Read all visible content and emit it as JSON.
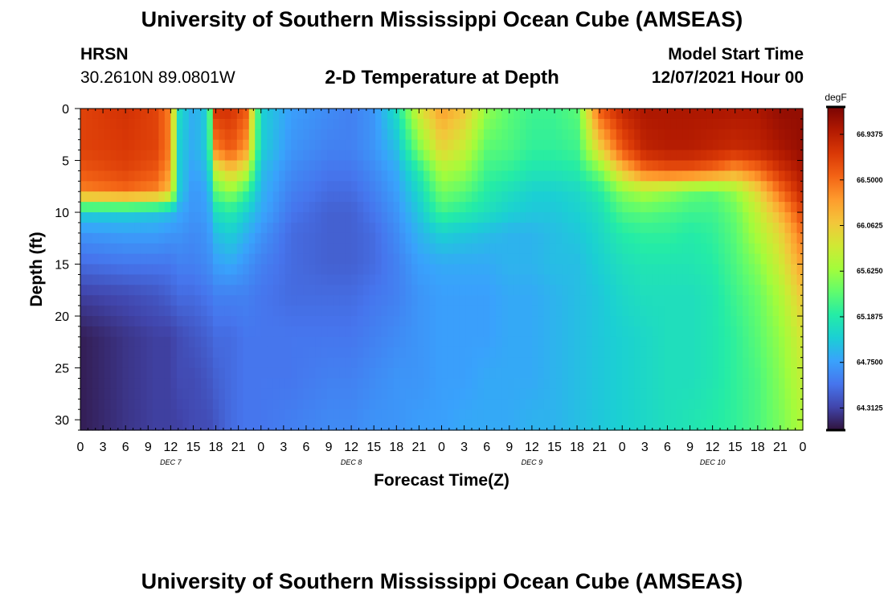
{
  "header": {
    "title": "University of Southern Mississippi Ocean Cube (AMSEAS)",
    "station": "HRSN",
    "coordinates": "30.2610N  89.0801W",
    "subtitle": "2-D Temperature at Depth",
    "model_start_label": "Model Start Time",
    "model_start_value": "12/07/2021 Hour 00"
  },
  "footer": {
    "title": "University of Southern Mississippi Ocean Cube (AMSEAS)"
  },
  "chart_data": {
    "type": "heatmap",
    "xlabel": "Forecast Time(Z)",
    "ylabel": "Depth (ft)",
    "x_range_hours": [
      0,
      96
    ],
    "x_tick_step_hours": 3,
    "x_tick_labels": [
      "0",
      "3",
      "6",
      "9",
      "12",
      "15",
      "18",
      "21",
      "0",
      "3",
      "6",
      "9",
      "12",
      "15",
      "18",
      "21",
      "0",
      "3",
      "6",
      "9",
      "12",
      "15",
      "18",
      "21",
      "0",
      "3",
      "6",
      "9",
      "12",
      "15",
      "18",
      "21",
      "0"
    ],
    "day_labels": [
      {
        "label": "DEC 7",
        "hour": 12
      },
      {
        "label": "DEC 8",
        "hour": 36
      },
      {
        "label": "DEC 9",
        "hour": 60
      },
      {
        "label": "DEC 10",
        "hour": 84
      }
    ],
    "y_range_ft": [
      0,
      31
    ],
    "y_ticks": [
      0,
      5,
      10,
      15,
      20,
      25,
      30
    ],
    "y_inverted": true,
    "colorbar": {
      "unit": "degF",
      "min": 64.1,
      "max": 67.2,
      "tick_labels": [
        "66.9375",
        "66.5000",
        "66.0625",
        "65.6250",
        "65.1875",
        "64.7500",
        "64.3125"
      ],
      "tick_values": [
        66.9375,
        66.5,
        66.0625,
        65.625,
        65.1875,
        64.75,
        64.3125
      ]
    },
    "columns_hours": [
      0,
      6,
      10,
      12,
      13,
      15,
      17,
      18,
      20,
      22,
      24,
      28,
      33,
      36,
      39,
      42,
      45,
      48,
      51,
      54,
      57,
      60,
      63,
      66,
      69,
      72,
      75,
      78,
      81,
      84,
      87,
      90,
      93,
      96
    ],
    "rows_ft": [
      0,
      4,
      6,
      8,
      10,
      12,
      15,
      18,
      22,
      26,
      31
    ],
    "values_degF": [
      [
        66.7,
        66.8,
        66.7,
        66.4,
        65.1,
        64.8,
        65.0,
        66.8,
        66.8,
        66.6,
        65.0,
        64.75,
        64.65,
        64.6,
        64.7,
        65.1,
        65.9,
        66.3,
        66.1,
        65.6,
        65.4,
        65.3,
        65.3,
        65.4,
        66.6,
        66.9,
        67.0,
        67.0,
        67.0,
        67.0,
        67.0,
        67.0,
        67.1,
        67.1
      ],
      [
        66.7,
        66.75,
        66.7,
        66.4,
        65.0,
        64.8,
        65.0,
        66.4,
        66.6,
        66.3,
        65.0,
        64.7,
        64.6,
        64.6,
        64.7,
        64.9,
        65.5,
        66.0,
        65.8,
        65.4,
        65.35,
        65.25,
        65.25,
        65.3,
        66.0,
        66.6,
        66.9,
        66.95,
        66.95,
        66.9,
        66.85,
        66.9,
        67.0,
        67.1
      ],
      [
        66.6,
        66.7,
        66.6,
        66.3,
        65.0,
        64.75,
        64.9,
        65.8,
        66.1,
        65.8,
        64.9,
        64.65,
        64.55,
        64.55,
        64.65,
        64.8,
        65.2,
        65.7,
        65.6,
        65.3,
        65.25,
        65.15,
        65.15,
        65.2,
        65.5,
        66.1,
        66.5,
        66.6,
        66.6,
        66.5,
        66.3,
        66.5,
        66.8,
        67.0
      ],
      [
        66.4,
        66.5,
        66.4,
        66.1,
        65.0,
        64.7,
        64.8,
        65.4,
        65.6,
        65.3,
        64.85,
        64.6,
        64.5,
        64.5,
        64.6,
        64.75,
        65.05,
        65.5,
        65.4,
        65.2,
        65.1,
        65.0,
        65.0,
        65.05,
        65.2,
        65.55,
        65.7,
        65.6,
        65.45,
        65.4,
        65.6,
        66.0,
        66.5,
        66.9
      ],
      [
        65.0,
        65.0,
        64.95,
        64.9,
        64.8,
        64.7,
        64.75,
        65.1,
        65.2,
        65.0,
        64.8,
        64.55,
        64.45,
        64.45,
        64.55,
        64.7,
        64.95,
        65.3,
        65.2,
        65.1,
        65.0,
        64.95,
        64.95,
        65.0,
        65.1,
        65.35,
        65.4,
        65.35,
        65.3,
        65.3,
        65.45,
        65.8,
        66.2,
        66.7
      ],
      [
        64.7,
        64.75,
        64.75,
        64.7,
        64.7,
        64.65,
        64.7,
        64.9,
        65.0,
        64.85,
        64.7,
        64.5,
        64.45,
        64.45,
        64.5,
        64.65,
        64.85,
        65.0,
        64.95,
        64.9,
        64.85,
        64.85,
        64.9,
        64.95,
        65.05,
        65.2,
        65.25,
        65.25,
        65.2,
        65.25,
        65.4,
        65.7,
        66.0,
        66.5
      ],
      [
        64.5,
        64.55,
        64.55,
        64.55,
        64.6,
        64.6,
        64.65,
        64.75,
        64.8,
        64.7,
        64.6,
        64.5,
        64.45,
        64.45,
        64.5,
        64.6,
        64.75,
        64.8,
        64.8,
        64.8,
        64.85,
        64.85,
        64.9,
        64.9,
        65.0,
        65.1,
        65.15,
        65.15,
        65.15,
        65.2,
        65.35,
        65.55,
        65.85,
        66.3
      ],
      [
        64.3,
        64.35,
        64.4,
        64.45,
        64.5,
        64.5,
        64.55,
        64.6,
        64.6,
        64.6,
        64.55,
        64.5,
        64.5,
        64.5,
        64.55,
        64.6,
        64.7,
        64.75,
        64.75,
        64.75,
        64.8,
        64.8,
        64.85,
        64.9,
        64.95,
        65.05,
        65.1,
        65.1,
        65.1,
        65.15,
        65.3,
        65.45,
        65.7,
        66.1
      ],
      [
        64.15,
        64.25,
        64.3,
        64.3,
        64.35,
        64.4,
        64.45,
        64.5,
        64.5,
        64.55,
        64.55,
        64.55,
        64.55,
        64.55,
        64.6,
        64.65,
        64.7,
        64.75,
        64.75,
        64.75,
        64.8,
        64.8,
        64.85,
        64.9,
        64.95,
        65.0,
        65.05,
        65.1,
        65.1,
        65.15,
        65.25,
        65.4,
        65.6,
        65.9
      ],
      [
        64.15,
        64.25,
        64.3,
        64.3,
        64.35,
        64.35,
        64.4,
        64.45,
        64.5,
        64.55,
        64.55,
        64.55,
        64.6,
        64.6,
        64.65,
        64.7,
        64.7,
        64.75,
        64.75,
        64.8,
        64.8,
        64.8,
        64.85,
        64.9,
        64.95,
        65.0,
        65.05,
        65.1,
        65.1,
        65.15,
        65.25,
        65.35,
        65.55,
        65.8
      ],
      [
        64.15,
        64.25,
        64.3,
        64.3,
        64.3,
        64.35,
        64.35,
        64.4,
        64.5,
        64.55,
        64.55,
        64.6,
        64.65,
        64.65,
        64.7,
        64.7,
        64.75,
        64.75,
        64.8,
        64.8,
        64.8,
        64.85,
        64.85,
        64.9,
        64.95,
        65.0,
        65.05,
        65.1,
        65.15,
        65.2,
        65.25,
        65.35,
        65.5,
        65.7
      ]
    ],
    "colormap": [
      "#30123b",
      "#4145ab",
      "#4675ed",
      "#39a2fc",
      "#1bcfd4",
      "#24eca6",
      "#61fc6c",
      "#a4fc3b",
      "#d1e834",
      "#f3c63a",
      "#fe9b2d",
      "#f36315",
      "#d93806",
      "#b11901",
      "#7a0403"
    ]
  }
}
